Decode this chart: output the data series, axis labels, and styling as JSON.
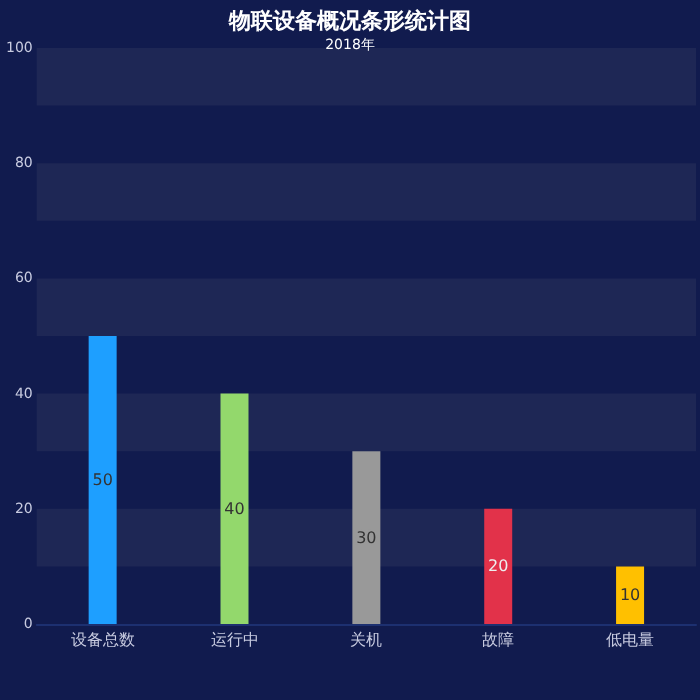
{
  "chart_data": {
    "type": "bar",
    "title": "物联设备概况条形统计图",
    "subtitle": "2018年",
    "categories": [
      "设备总数",
      "运行中",
      "关机",
      "故障",
      "低电量"
    ],
    "values": [
      50,
      40,
      30,
      20,
      10
    ],
    "colors": [
      "#1e9fff",
      "#93d86c",
      "#999999",
      "#e2324a",
      "#ffc000"
    ],
    "ylim": [
      0,
      100
    ],
    "yticks": [
      0,
      20,
      40,
      60,
      80,
      100
    ],
    "bands": [
      {
        "axis": "y",
        "from": 10,
        "to": 20,
        "color": "#1e2755"
      },
      {
        "axis": "y",
        "from": 30,
        "to": 40,
        "color": "#1e2755"
      },
      {
        "axis": "y",
        "from": 50,
        "to": 60,
        "color": "#1e2755"
      },
      {
        "axis": "y",
        "from": 70,
        "to": 80,
        "color": "#1e2755"
      },
      {
        "axis": "y",
        "from": 90,
        "to": 100,
        "color": "#1e2755"
      }
    ],
    "data_labels": true
  }
}
